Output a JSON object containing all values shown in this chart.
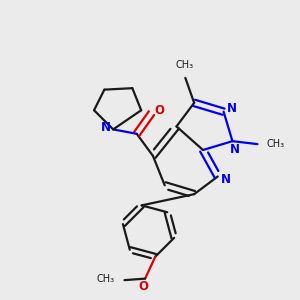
{
  "background_color": "#ebebeb",
  "bond_color": "#1a1a1a",
  "nitrogen_color": "#0000ee",
  "oxygen_color": "#dd0000",
  "figsize": [
    3.0,
    3.0
  ],
  "dpi": 100,
  "xlim": [
    0,
    10
  ],
  "ylim": [
    0,
    10
  ]
}
